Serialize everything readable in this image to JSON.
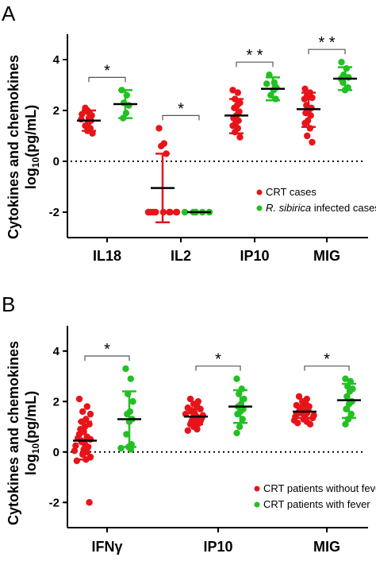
{
  "colors": {
    "red": "#e8141a",
    "green": "#22c022",
    "axis": "#000000"
  },
  "chart_data": [
    {
      "type": "scatter",
      "panel_label": "A",
      "ylabel_line1": "Cytokines and chemokines",
      "ylabel_line2": "log10(pg/mL)",
      "ylim": [
        -3,
        5
      ],
      "yticks": [
        -2,
        0,
        2,
        4
      ],
      "categories": [
        "IL18",
        "IL2",
        "IP10",
        "MIG"
      ],
      "reference_line": 0,
      "legend": {
        "position": "bottom-right",
        "entries": [
          "CRT cases",
          "R. sibirica infected cases"
        ]
      },
      "series": [
        {
          "name": "CRT cases",
          "color": "red",
          "groups": [
            {
              "category": "IL18",
              "mean": 1.6,
              "sd_low": 1.2,
              "sd_high": 2.0,
              "points": [
                2.1,
                2.05,
                2.0,
                1.95,
                1.9,
                1.85,
                1.8,
                1.7,
                1.65,
                1.6,
                1.5,
                1.4,
                1.3,
                1.2,
                1.1
              ]
            },
            {
              "category": "IL2",
              "mean": -1.05,
              "sd_low": -2.4,
              "sd_high": 0.3,
              "points": [
                1.3,
                0.7,
                0.6,
                0.3,
                -2.0,
                -2.0,
                -2.0,
                -2.0,
                -2.0,
                -2.0,
                -2.0,
                -2.0,
                -2.0,
                -2.0
              ]
            },
            {
              "category": "IP10",
              "mean": 1.8,
              "sd_low": 1.1,
              "sd_high": 2.45,
              "points": [
                2.8,
                2.7,
                2.45,
                2.3,
                2.2,
                2.1,
                1.95,
                1.8,
                1.7,
                1.6,
                1.5,
                1.4,
                1.3,
                1.15,
                0.95
              ]
            },
            {
              "category": "MIG",
              "mean": 2.05,
              "sd_low": 1.35,
              "sd_high": 2.7,
              "points": [
                2.85,
                2.7,
                2.6,
                2.5,
                2.45,
                2.2,
                2.1,
                2.0,
                1.9,
                1.8,
                1.6,
                1.5,
                1.3,
                1.0,
                0.75
              ]
            }
          ]
        },
        {
          "name": "R. sibirica infected cases",
          "color": "green",
          "groups": [
            {
              "category": "IL18",
              "mean": 2.25,
              "sd_low": 1.7,
              "sd_high": 2.8,
              "points": [
                2.8,
                2.6,
                2.3,
                2.2,
                1.9,
                1.7
              ]
            },
            {
              "category": "IL2",
              "mean": -2.0,
              "sd_low": -2.0,
              "sd_high": -2.0,
              "points": [
                -2.0,
                -2.0,
                -2.0,
                -2.0,
                -2.0,
                -2.0
              ]
            },
            {
              "category": "IP10",
              "mean": 2.85,
              "sd_low": 2.4,
              "sd_high": 3.3,
              "points": [
                3.4,
                3.1,
                3.05,
                2.9,
                2.8,
                2.6,
                2.45
              ]
            },
            {
              "category": "MIG",
              "mean": 3.25,
              "sd_low": 2.8,
              "sd_high": 3.7,
              "points": [
                3.9,
                3.65,
                3.4,
                3.3,
                3.25,
                3.1,
                2.9,
                2.8
              ]
            }
          ]
        }
      ],
      "significance": [
        {
          "category": "IL18",
          "label": "*"
        },
        {
          "category": "IL2",
          "label": "*"
        },
        {
          "category": "IP10",
          "label": "* *"
        },
        {
          "category": "MIG",
          "label": "* *"
        }
      ]
    },
    {
      "type": "scatter",
      "panel_label": "B",
      "ylabel_line1": "Cytokines and chemokines",
      "ylabel_line2": "log10(pg/mL)",
      "ylim": [
        -3,
        5
      ],
      "yticks": [
        -2,
        0,
        2,
        4
      ],
      "categories": [
        "IFNγ",
        "IP10",
        "MIG"
      ],
      "reference_line": 0,
      "legend": {
        "position": "bottom-right",
        "entries": [
          "CRT patients without fever",
          "CRT patients with fever"
        ]
      },
      "series": [
        {
          "name": "CRT patients without fever",
          "color": "red",
          "groups": [
            {
              "category": "IFNγ",
              "mean": 0.45,
              "sd_low": -0.3,
              "sd_high": 1.2,
              "points": [
                2.1,
                1.8,
                1.6,
                1.5,
                1.3,
                1.2,
                1.1,
                1.0,
                0.9,
                0.85,
                0.8,
                0.7,
                0.6,
                0.55,
                0.5,
                0.45,
                0.4,
                0.35,
                0.3,
                0.25,
                0.2,
                0.1,
                0.05,
                0.0,
                -0.1,
                -0.2,
                -0.3,
                -0.35,
                -2.0
              ]
            },
            {
              "category": "IP10",
              "mean": 1.4,
              "sd_low": 1.1,
              "sd_high": 1.7,
              "points": [
                2.1,
                2.0,
                1.9,
                1.85,
                1.8,
                1.75,
                1.7,
                1.65,
                1.6,
                1.55,
                1.5,
                1.5,
                1.45,
                1.4,
                1.4,
                1.35,
                1.3,
                1.3,
                1.25,
                1.2,
                1.2,
                1.15,
                1.1,
                1.05,
                1.0,
                0.95,
                0.9,
                0.85
              ]
            },
            {
              "category": "MIG",
              "mean": 1.6,
              "sd_low": 1.35,
              "sd_high": 1.85,
              "points": [
                2.2,
                2.1,
                2.0,
                1.95,
                1.9,
                1.85,
                1.8,
                1.75,
                1.7,
                1.7,
                1.65,
                1.6,
                1.6,
                1.55,
                1.55,
                1.5,
                1.5,
                1.45,
                1.4,
                1.4,
                1.35,
                1.3,
                1.25,
                1.2,
                1.15,
                1.1
              ]
            }
          ]
        },
        {
          "name": "CRT patients with fever",
          "color": "green",
          "groups": [
            {
              "category": "IFNγ",
              "mean": 1.3,
              "sd_low": 0.2,
              "sd_high": 2.4,
              "points": [
                3.3,
                2.9,
                2.3,
                2.0,
                1.6,
                1.5,
                1.3,
                1.2,
                0.7,
                0.3,
                0.2,
                0.15,
                0.1
              ]
            },
            {
              "category": "IP10",
              "mean": 1.8,
              "sd_low": 1.15,
              "sd_high": 2.45,
              "points": [
                2.9,
                2.5,
                2.3,
                2.1,
                1.9,
                1.8,
                1.7,
                1.6,
                1.5,
                1.3,
                1.0,
                0.75
              ]
            },
            {
              "category": "MIG",
              "mean": 2.05,
              "sd_low": 1.35,
              "sd_high": 2.7,
              "points": [
                2.9,
                2.8,
                2.6,
                2.5,
                2.4,
                2.2,
                2.0,
                1.9,
                1.7,
                1.5,
                1.3,
                1.1
              ]
            }
          ]
        }
      ],
      "significance": [
        {
          "category": "IFNγ",
          "label": "*"
        },
        {
          "category": "IP10",
          "label": "*"
        },
        {
          "category": "MIG",
          "label": "*"
        }
      ]
    }
  ]
}
